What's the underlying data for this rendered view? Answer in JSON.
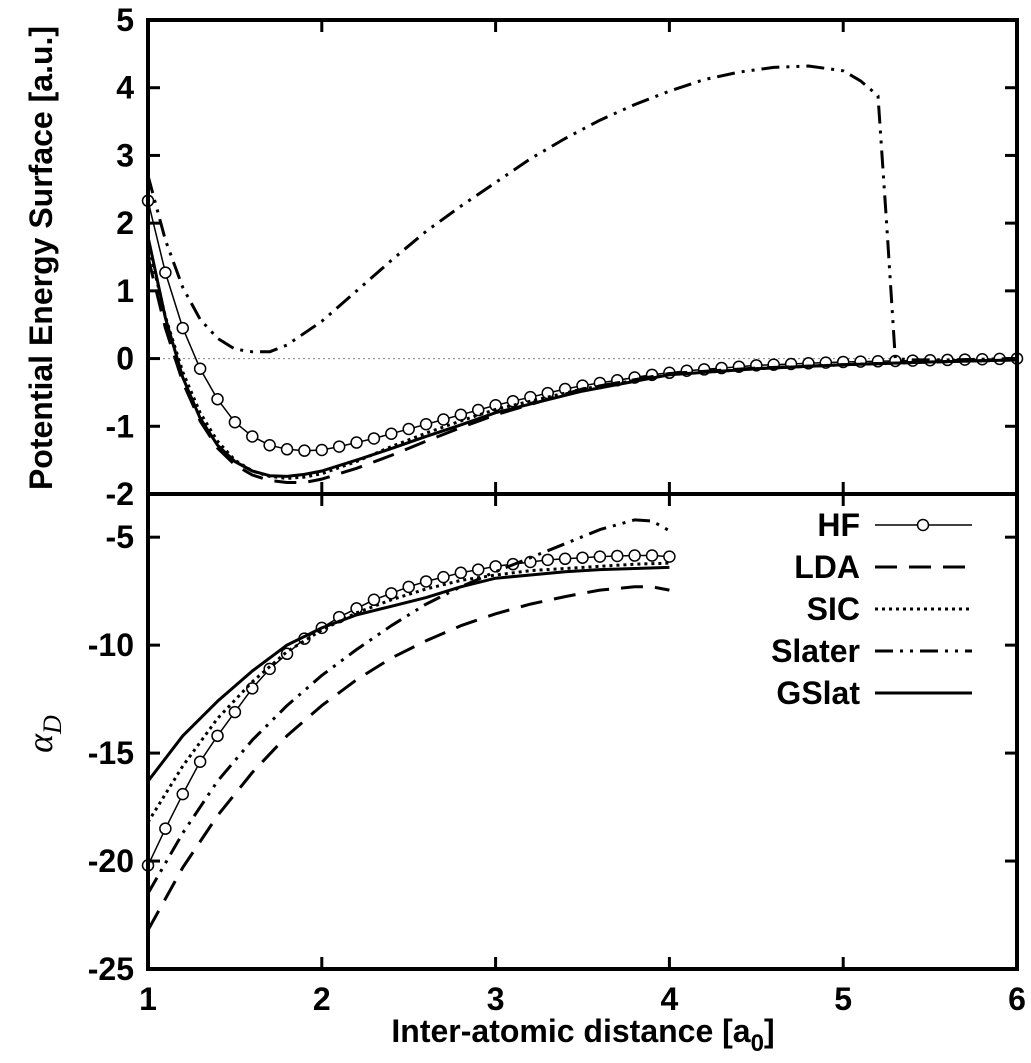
{
  "chart_data": [
    {
      "type": "line",
      "panel": "top",
      "ylabel": "Potential Energy Surface  [a.u.]",
      "xlim": [
        1,
        6
      ],
      "ylim": [
        -2,
        5
      ],
      "yticks": [
        "5",
        "4",
        "3",
        "2",
        "1",
        "0",
        "-1",
        "-2"
      ],
      "zero_line": true,
      "series": [
        {
          "name": "HF",
          "style": "solid-circles",
          "x": [
            1.0,
            1.1,
            1.2,
            1.3,
            1.4,
            1.5,
            1.6,
            1.7,
            1.8,
            1.9,
            2.0,
            2.1,
            2.2,
            2.3,
            2.4,
            2.5,
            2.6,
            2.7,
            2.8,
            2.9,
            3.0,
            3.1,
            3.2,
            3.3,
            3.4,
            3.5,
            3.6,
            3.7,
            3.8,
            3.9,
            4.0,
            4.1,
            4.2,
            4.3,
            4.4,
            4.5,
            4.6,
            4.7,
            4.8,
            4.9,
            5.0,
            5.1,
            5.2,
            5.3,
            5.4,
            5.5,
            5.6,
            5.7,
            5.8,
            5.9,
            6.0
          ],
          "y": [
            2.33,
            1.27,
            0.45,
            -0.15,
            -0.6,
            -0.94,
            -1.15,
            -1.28,
            -1.34,
            -1.36,
            -1.35,
            -1.3,
            -1.24,
            -1.18,
            -1.11,
            -1.04,
            -0.97,
            -0.9,
            -0.83,
            -0.76,
            -0.69,
            -0.63,
            -0.57,
            -0.51,
            -0.45,
            -0.4,
            -0.36,
            -0.32,
            -0.28,
            -0.24,
            -0.21,
            -0.18,
            -0.16,
            -0.14,
            -0.12,
            -0.1,
            -0.09,
            -0.08,
            -0.07,
            -0.06,
            -0.05,
            -0.045,
            -0.04,
            -0.035,
            -0.03,
            -0.025,
            -0.02,
            -0.015,
            -0.01,
            -0.005,
            0.0
          ]
        },
        {
          "name": "LDA",
          "style": "dashed",
          "x": [
            1.0,
            1.1,
            1.2,
            1.3,
            1.4,
            1.5,
            1.6,
            1.7,
            1.8,
            1.9,
            2.0,
            2.2,
            2.4,
            2.6,
            2.8,
            3.0,
            3.5,
            4.0,
            4.5,
            5.0,
            5.5,
            6.0
          ],
          "y": [
            1.5,
            0.45,
            -0.35,
            -0.92,
            -1.32,
            -1.57,
            -1.72,
            -1.8,
            -1.83,
            -1.83,
            -1.78,
            -1.62,
            -1.43,
            -1.22,
            -1.02,
            -0.83,
            -0.45,
            -0.22,
            -0.14,
            -0.09,
            -0.05,
            -0.02
          ]
        },
        {
          "name": "SIC",
          "style": "dotted",
          "x": [
            1.0,
            1.1,
            1.2,
            1.3,
            1.4,
            1.5,
            1.6,
            1.7,
            1.8,
            1.9,
            2.0,
            2.2,
            2.4,
            2.6,
            2.8,
            3.0,
            3.5,
            4.0,
            4.5,
            5.0,
            5.5,
            6.0
          ],
          "y": [
            1.7,
            0.62,
            -0.2,
            -0.8,
            -1.22,
            -1.5,
            -1.66,
            -1.74,
            -1.77,
            -1.75,
            -1.7,
            -1.52,
            -1.3,
            -1.1,
            -0.92,
            -0.75,
            -0.45,
            -0.24,
            -0.15,
            -0.09,
            -0.05,
            -0.02
          ]
        },
        {
          "name": "Slater",
          "style": "dash-dot-dot",
          "x": [
            1.0,
            1.1,
            1.2,
            1.3,
            1.4,
            1.5,
            1.6,
            1.7,
            1.8,
            2.0,
            2.2,
            2.4,
            2.6,
            2.8,
            3.0,
            3.2,
            3.4,
            3.6,
            3.8,
            4.0,
            4.2,
            4.4,
            4.6,
            4.8,
            5.0,
            5.1,
            5.2,
            5.25,
            5.3,
            5.4,
            5.6,
            5.8,
            6.0
          ],
          "y": [
            2.7,
            1.75,
            1.05,
            0.58,
            0.3,
            0.14,
            0.1,
            0.1,
            0.2,
            0.55,
            1.0,
            1.45,
            1.88,
            2.25,
            2.6,
            2.95,
            3.25,
            3.52,
            3.75,
            3.95,
            4.12,
            4.23,
            4.3,
            4.32,
            4.25,
            4.1,
            3.88,
            2.0,
            0.0,
            -0.02,
            -0.02,
            -0.01,
            0.0
          ]
        },
        {
          "name": "GSlat",
          "style": "solid",
          "x": [
            1.0,
            1.1,
            1.2,
            1.3,
            1.4,
            1.5,
            1.6,
            1.7,
            1.8,
            1.9,
            2.0,
            2.2,
            2.4,
            2.6,
            2.8,
            3.0,
            3.5,
            4.0,
            4.5,
            5.0,
            5.5,
            6.0
          ],
          "y": [
            1.8,
            0.6,
            -0.28,
            -0.88,
            -1.28,
            -1.52,
            -1.66,
            -1.73,
            -1.74,
            -1.71,
            -1.66,
            -1.5,
            -1.33,
            -1.15,
            -0.98,
            -0.8,
            -0.48,
            -0.24,
            -0.15,
            -0.09,
            -0.05,
            -0.02
          ]
        }
      ]
    },
    {
      "type": "line",
      "panel": "bottom",
      "xlabel_pre": "Inter-atomic distance [a",
      "xlabel_sub": "0",
      "xlabel_post": "]",
      "ylabel_main": "α",
      "ylabel_sub": "D",
      "xlim": [
        1,
        6
      ],
      "ylim": [
        -25,
        -3
      ],
      "xticks": [
        "1",
        "2",
        "3",
        "4",
        "5",
        "6"
      ],
      "yticks": [
        "-5",
        "-10",
        "-15",
        "-20",
        "-25"
      ],
      "legend_position": "top-right",
      "series": [
        {
          "name": "HF",
          "style": "solid-circles",
          "x": [
            1.0,
            1.1,
            1.2,
            1.3,
            1.4,
            1.5,
            1.6,
            1.7,
            1.8,
            1.9,
            2.0,
            2.1,
            2.2,
            2.3,
            2.4,
            2.5,
            2.6,
            2.7,
            2.8,
            2.9,
            3.0,
            3.1,
            3.2,
            3.3,
            3.4,
            3.5,
            3.6,
            3.7,
            3.8,
            3.9,
            4.0
          ],
          "y": [
            -20.2,
            -18.5,
            -16.9,
            -15.4,
            -14.2,
            -13.1,
            -12.0,
            -11.1,
            -10.4,
            -9.7,
            -9.2,
            -8.7,
            -8.3,
            -7.9,
            -7.6,
            -7.3,
            -7.05,
            -6.85,
            -6.65,
            -6.5,
            -6.35,
            -6.25,
            -6.15,
            -6.05,
            -6.0,
            -5.95,
            -5.9,
            -5.87,
            -5.85,
            -5.85,
            -5.9
          ]
        },
        {
          "name": "LDA",
          "style": "dashed",
          "x": [
            1.0,
            1.2,
            1.4,
            1.6,
            1.8,
            2.0,
            2.2,
            2.4,
            2.6,
            2.8,
            3.0,
            3.2,
            3.4,
            3.6,
            3.8,
            3.9,
            4.0
          ],
          "y": [
            -23.2,
            -20.3,
            -17.9,
            -15.9,
            -14.2,
            -12.8,
            -11.6,
            -10.6,
            -9.8,
            -9.1,
            -8.55,
            -8.1,
            -7.75,
            -7.45,
            -7.3,
            -7.3,
            -7.45
          ]
        },
        {
          "name": "SIC",
          "style": "dotted",
          "x": [
            1.0,
            1.2,
            1.4,
            1.6,
            1.8,
            2.0,
            2.2,
            2.4,
            2.6,
            2.8,
            3.0,
            3.2,
            3.4,
            3.6,
            3.8,
            4.0
          ],
          "y": [
            -18.2,
            -15.6,
            -13.4,
            -11.7,
            -10.3,
            -9.3,
            -8.5,
            -7.9,
            -7.4,
            -7.0,
            -6.75,
            -6.55,
            -6.45,
            -6.35,
            -6.25,
            -6.2
          ]
        },
        {
          "name": "Slater",
          "style": "dash-dot-dot",
          "x": [
            1.0,
            1.2,
            1.4,
            1.6,
            1.8,
            2.0,
            2.2,
            2.4,
            2.6,
            2.8,
            3.0,
            3.2,
            3.4,
            3.6,
            3.8,
            3.9,
            4.0
          ],
          "y": [
            -21.5,
            -18.7,
            -16.3,
            -14.4,
            -12.8,
            -11.4,
            -10.2,
            -9.1,
            -8.1,
            -7.3,
            -6.6,
            -5.95,
            -5.3,
            -4.65,
            -4.2,
            -4.25,
            -4.7
          ]
        },
        {
          "name": "GSlat",
          "style": "solid",
          "x": [
            1.0,
            1.2,
            1.4,
            1.6,
            1.8,
            2.0,
            2.2,
            2.4,
            2.6,
            2.8,
            3.0,
            3.2,
            3.4,
            3.6,
            3.8,
            4.0
          ],
          "y": [
            -16.3,
            -14.2,
            -12.6,
            -11.2,
            -10.0,
            -9.2,
            -8.6,
            -8.2,
            -7.8,
            -7.3,
            -6.9,
            -6.75,
            -6.6,
            -6.5,
            -6.45,
            -6.4
          ]
        }
      ]
    }
  ]
}
